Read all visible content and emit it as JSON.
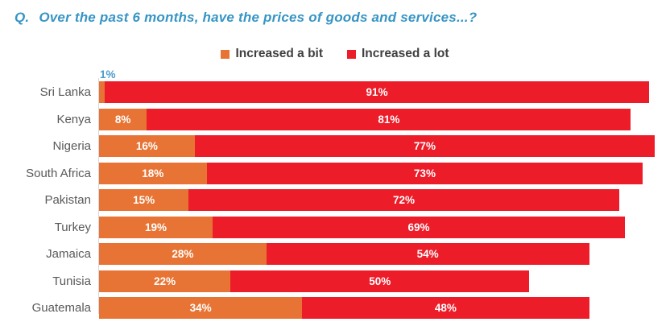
{
  "title": {
    "prefix": "Q.",
    "text": "Over the past 6 months, have the prices of goods and services...?"
  },
  "legend": [
    {
      "label": "Increased a bit",
      "color": "#E77434"
    },
    {
      "label": "Increased a lot",
      "color": "#EC1C29"
    }
  ],
  "chart_data": {
    "type": "bar",
    "orientation": "horizontal",
    "stacked": true,
    "title": "Q. Over the past 6 months, have the prices of goods and services...?",
    "categories": [
      "Sri Lanka",
      "Kenya",
      "Nigeria",
      "South Africa",
      "Pakistan",
      "Turkey",
      "Jamaica",
      "Tunisia",
      "Guatemala"
    ],
    "series": [
      {
        "name": "Increased a bit",
        "color": "#E77434",
        "values": [
          1,
          8,
          16,
          18,
          15,
          19,
          28,
          22,
          34
        ]
      },
      {
        "name": "Increased a lot",
        "color": "#EC1C29",
        "values": [
          91,
          81,
          77,
          73,
          72,
          69,
          54,
          50,
          48
        ]
      }
    ],
    "value_suffix": "%",
    "xlim": [
      0,
      95
    ],
    "grid": false,
    "legend_position": "top",
    "bar_labels": "centered-white; first-series label shown above bar in blue when segment too small"
  },
  "colors": {
    "title_text": "#3695C5",
    "outside_label": "#4A9CCE",
    "axis_line": "#D3D9E0",
    "category_label": "#595959",
    "legend_text": "#404040",
    "bar_label": "#FFFFFF",
    "background": "#FFFFFF"
  }
}
